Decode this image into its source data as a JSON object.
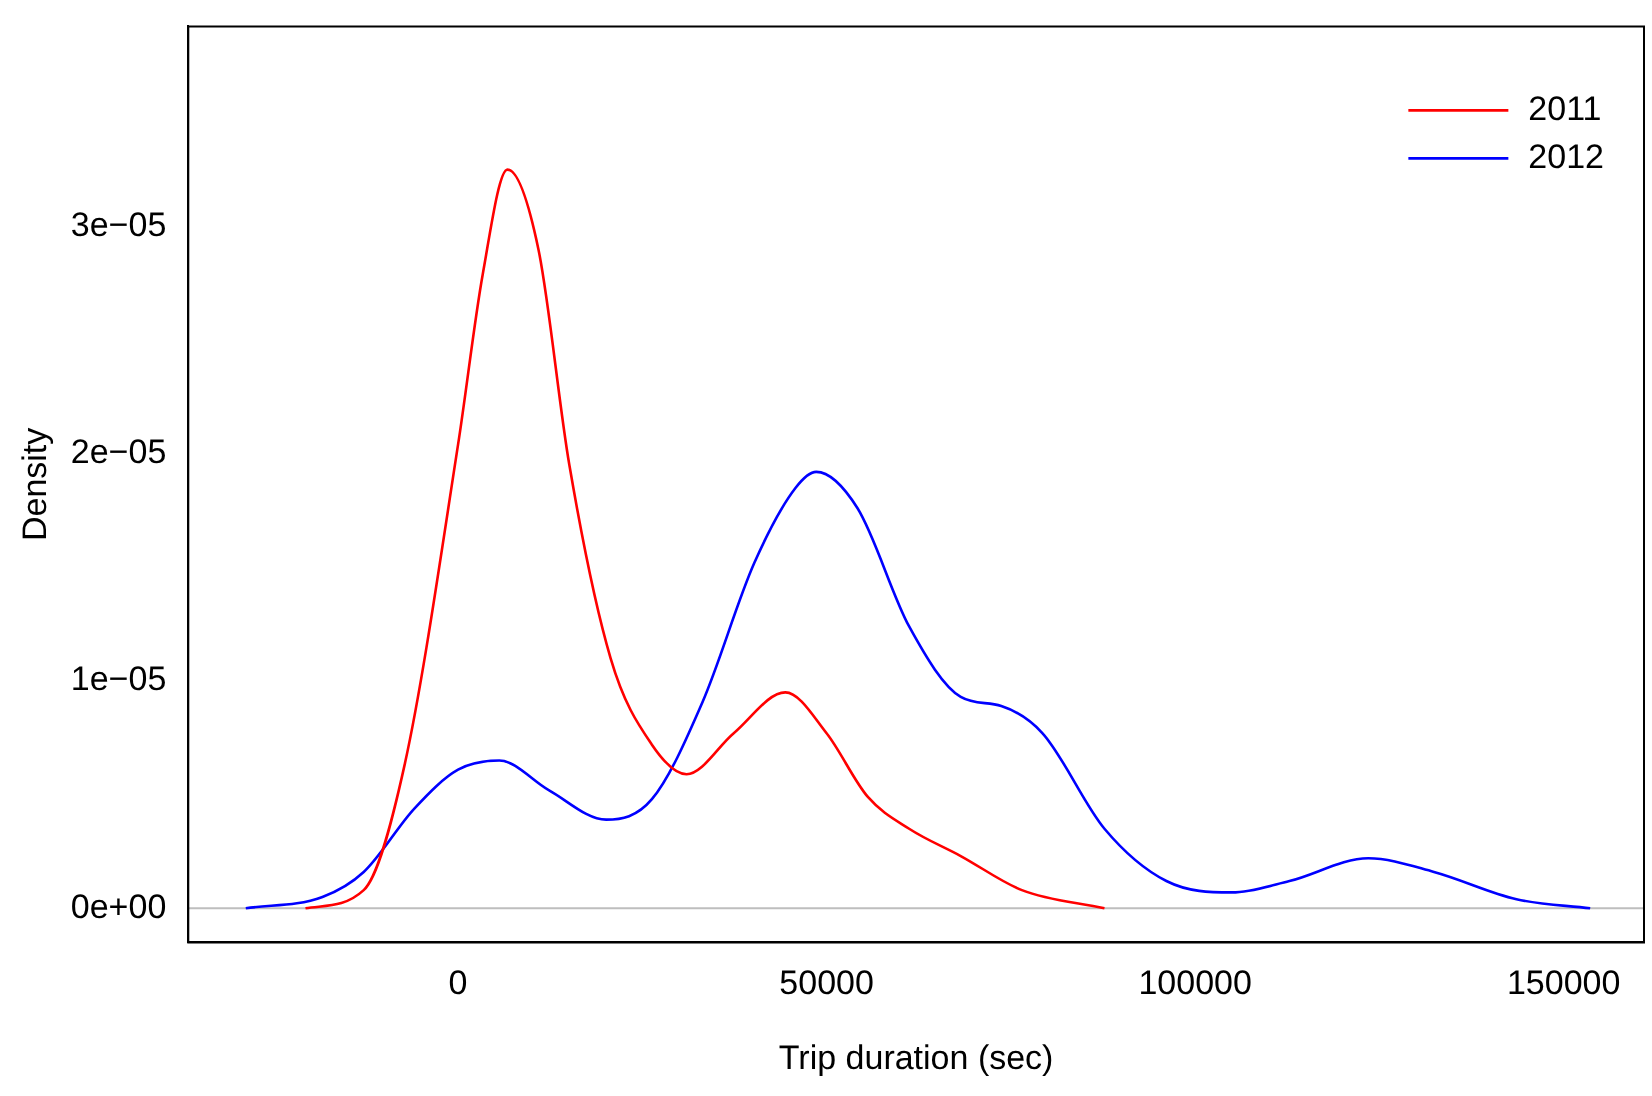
{
  "chart_data": {
    "type": "line",
    "xlabel": "Trip duration (sec)",
    "ylabel": "Density",
    "xlim": [
      -36600,
      160900
    ],
    "xticks": [
      0,
      50000,
      100000,
      150000
    ],
    "ylim": [
      -1.5e-06,
      3.88e-05
    ],
    "yticks": [
      {
        "value": 0,
        "label": "0e+00"
      },
      {
        "value": 1e-05,
        "label": "1e−05"
      },
      {
        "value": 2e-05,
        "label": "2e−05"
      },
      {
        "value": 3e-05,
        "label": "3e−05"
      }
    ],
    "grid": false,
    "legend": "top right",
    "marker": "none",
    "line_style": "solid",
    "ref_lines": [
      {
        "axis": "y",
        "value": 0,
        "label": null,
        "color": "#bebebe"
      }
    ],
    "series": [
      {
        "name": "2011",
        "color": "#ff0000",
        "x": [
          -20700,
          -12800,
          -7260,
          0,
          3350,
          6700,
          10900,
          15100,
          20700,
          26300,
          31000,
          37400,
          44400,
          50000,
          55600,
          61200,
          68200,
          76500,
          87700
        ],
        "values": [
          0,
          8e-07,
          6.3e-06,
          2.04e-05,
          2.79e-05,
          3.25e-05,
          2.9e-05,
          1.95e-05,
          1.1e-05,
          7.2e-06,
          5.9e-06,
          7.7e-06,
          9.5e-06,
          7.7e-06,
          4.9e-06,
          3.5e-06,
          2.3e-06,
          8e-07,
          0
        ]
      },
      {
        "name": "2012",
        "color": "#0000ff",
        "x": [
          -28800,
          -18400,
          -12800,
          -5900,
          0,
          5600,
          12300,
          20100,
          26300,
          33200,
          40200,
          45800,
          48600,
          54200,
          61200,
          68200,
          73700,
          79300,
          87700,
          96100,
          105000,
          112800,
          123500,
          132400,
          143600,
          153600
        ],
        "values": [
          0,
          5e-07,
          1.6e-06,
          4.4e-06,
          6.1e-06,
          6.5e-06,
          5.2e-06,
          3.9e-06,
          4.8e-06,
          9.1e-06,
          1.52e-05,
          1.85e-05,
          1.92e-05,
          1.76e-05,
          1.24e-05,
          9.3e-06,
          8.9e-06,
          7.7e-06,
          3.5e-06,
          1.2e-06,
          7e-07,
          1.2e-06,
          2.2e-06,
          1.6e-06,
          4e-07,
          0
        ]
      }
    ]
  }
}
